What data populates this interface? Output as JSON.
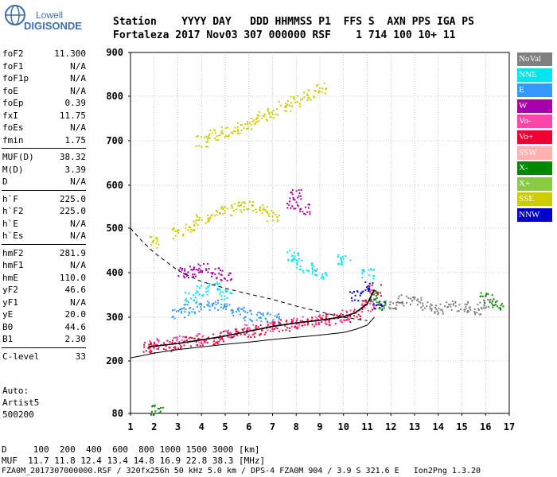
{
  "logo": {
    "line1": "Lowell",
    "line2": "DIGISONDE"
  },
  "header": {
    "line1": "Station    YYYY DAY   DDD HHMMSS P1  FFS S  AXN PPS IGA PS",
    "line2": "Fortaleza 2017 Nov03 307 000000 RSF    1 714 100 10+ 11"
  },
  "params": [
    [
      {
        "k": "foF2",
        "v": "11.300"
      },
      {
        "k": "foF1",
        "v": "N/A"
      },
      {
        "k": "foF1p",
        "v": "N/A"
      },
      {
        "k": "foE",
        "v": "N/A"
      },
      {
        "k": "foEp",
        "v": "0.39"
      },
      {
        "k": "fxI",
        "v": "11.75"
      },
      {
        "k": "foEs",
        "v": "N/A"
      },
      {
        "k": "fmin",
        "v": "1.75"
      }
    ],
    [
      {
        "k": "MUF(D)",
        "v": "38.32"
      },
      {
        "k": "M(D)",
        "v": "3.39"
      },
      {
        "k": "D",
        "v": "N/A"
      }
    ],
    [
      {
        "k": "h`F",
        "v": "225.0"
      },
      {
        "k": "h`F2",
        "v": "225.0"
      },
      {
        "k": "h`E",
        "v": "N/A"
      },
      {
        "k": "h`Es",
        "v": "N/A"
      }
    ],
    [
      {
        "k": "hmF2",
        "v": "281.9"
      },
      {
        "k": "hmF1",
        "v": "N/A"
      },
      {
        "k": "hmE",
        "v": "110.0"
      },
      {
        "k": "yF2",
        "v": "46.6"
      },
      {
        "k": "yF1",
        "v": "N/A"
      },
      {
        "k": "yE",
        "v": "20.0"
      },
      {
        "k": "B0",
        "v": "44.6"
      },
      {
        "k": "B1",
        "v": "2.30"
      }
    ],
    [
      {
        "k": "C-level",
        "v": "33"
      }
    ]
  ],
  "auto": {
    "line1": "Auto:",
    "line2": "Artist5",
    "line3": "500200"
  },
  "legend": [
    {
      "label": "NoVal",
      "color": "#808080"
    },
    {
      "label": "NNE",
      "color": "#00e5ee"
    },
    {
      "label": "E",
      "color": "#3399ff"
    },
    {
      "label": "W",
      "color": "#aa00aa"
    },
    {
      "label": "Vo-",
      "color": "#ff44aa"
    },
    {
      "label": "Vo+",
      "color": "#ee0033"
    },
    {
      "label": "SSW",
      "color": "#ffb0b0"
    },
    {
      "label": "X-",
      "color": "#008800"
    },
    {
      "label": "X+",
      "color": "#88cc44"
    },
    {
      "label": "SSE",
      "color": "#cccc00"
    },
    {
      "label": "NNW",
      "color": "#0000cc"
    }
  ],
  "footer": {
    "d_line": "D     100  200  400  600  800 1000 1500 3000 [km]",
    "muf_line": "MUF  11.7 11.8 12.4 13.4 14.8 16.9 22.8 38.3 [MHz]",
    "info_line": "FZA0M_2017307000000.RSF / 320fx256h 50 kHz 5.0 km / DPS-4 FZA0M 904 / 3.9 S 321.6 E   Ion2Png 1.3.20"
  },
  "chart_data": {
    "type": "scatter",
    "xlabel": "",
    "ylabel": "",
    "xlim": [
      1,
      17
    ],
    "ylim": [
      80,
      900
    ],
    "x_ticks": [
      "1",
      "2",
      "3",
      "4",
      "5",
      "6",
      "7",
      "8",
      "9",
      "10",
      "11",
      "12",
      "13",
      "14",
      "15",
      "16",
      "17"
    ],
    "y_ticks": [
      "80",
      "200",
      "300",
      "400",
      "500",
      "600",
      "700",
      "800",
      "900"
    ],
    "grid": true,
    "legend_position": "right",
    "series": [
      {
        "name": "Vo+",
        "x": [
          1.75,
          2,
          2.5,
          3,
          3.5,
          4,
          4.5,
          5,
          5.5,
          6,
          6.5,
          7,
          7.5,
          8,
          8.5,
          9,
          9.5,
          10,
          10.5,
          11,
          11.3
        ],
        "y": [
          232,
          233,
          236,
          240,
          244,
          248,
          252,
          257,
          262,
          268,
          273,
          279,
          283,
          287,
          290,
          293,
          296,
          301,
          310,
          330,
          362
        ]
      },
      {
        "name": "Vo-",
        "x": [
          2,
          3,
          4,
          5,
          6,
          7,
          8,
          9,
          10,
          11
        ],
        "y": [
          240,
          246,
          255,
          262,
          272,
          282,
          290,
          296,
          305,
          325
        ]
      },
      {
        "name": "NNE",
        "x": [
          3.5,
          4,
          4.5,
          5,
          7.8,
          8,
          8.5,
          9,
          10,
          11
        ],
        "y": [
          345,
          360,
          370,
          350,
          440,
          420,
          410,
          400,
          430,
          400
        ]
      },
      {
        "name": "E",
        "x": [
          3,
          3.5,
          4,
          4.5,
          5,
          5.5,
          6,
          6.5,
          7
        ],
        "y": [
          310,
          318,
          325,
          330,
          322,
          315,
          305,
          300,
          298
        ]
      },
      {
        "name": "W",
        "x": [
          3.2,
          3.5,
          4,
          4.5,
          5,
          7.8,
          8,
          8.3
        ],
        "y": [
          400,
          405,
          410,
          400,
          395,
          560,
          580,
          545
        ]
      },
      {
        "name": "SSE",
        "x": [
          2,
          3,
          3.5,
          4,
          4.5,
          5,
          5.5,
          6,
          6.5,
          7
        ],
        "y": [
          470,
          490,
          505,
          520,
          530,
          540,
          550,
          555,
          545,
          530
        ]
      },
      {
        "name": "SSE",
        "x": [
          4,
          4.5,
          5,
          5.5,
          6,
          6.5,
          7,
          7.5,
          8,
          8.5,
          9
        ],
        "y": [
          700,
          715,
          720,
          730,
          740,
          755,
          765,
          780,
          790,
          805,
          820
        ]
      },
      {
        "name": "NNW",
        "x": [
          10.5,
          11,
          11.5
        ],
        "y": [
          350,
          370,
          330
        ]
      },
      {
        "name": "X-",
        "x": [
          11.3,
          11.5,
          16,
          16.5,
          2.1
        ],
        "y": [
          350,
          330,
          345,
          330,
          88
        ]
      },
      {
        "name": "NoVal",
        "x": [
          12,
          12.5,
          13,
          13.5,
          14,
          14.5,
          15,
          15.5,
          16
        ],
        "y": [
          330,
          340,
          335,
          325,
          320,
          330,
          325,
          320,
          330
        ]
      }
    ],
    "profile_line": {
      "x": [
        1,
        1.5,
        2,
        3,
        4,
        5,
        6,
        7,
        8,
        9,
        10,
        10.5,
        11,
        11.3
      ],
      "y": [
        207,
        212,
        218,
        226,
        232,
        238,
        243,
        249,
        254,
        259,
        265,
        272,
        282,
        300
      ]
    },
    "muf_curve": {
      "x": [
        1,
        1.5,
        2,
        3,
        4,
        5,
        6,
        7,
        8,
        9,
        10,
        11
      ],
      "y": [
        500,
        470,
        445,
        405,
        380,
        365,
        352,
        340,
        325,
        312,
        300,
        292
      ]
    },
    "fitted_trace": {
      "x": [
        1.75,
        3,
        4,
        5,
        6,
        7,
        8,
        9,
        10,
        10.5,
        11,
        11.3
      ],
      "y": [
        232,
        240,
        248,
        257,
        268,
        279,
        287,
        293,
        301,
        310,
        330,
        362
      ]
    }
  }
}
